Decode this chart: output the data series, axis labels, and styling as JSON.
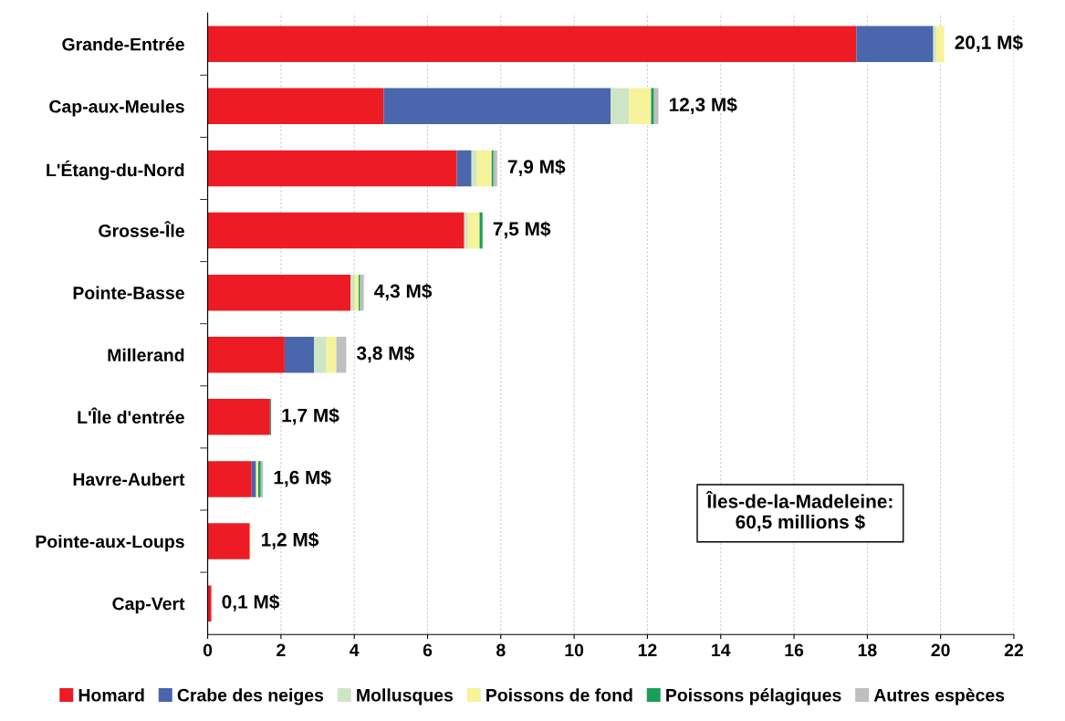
{
  "chart_data": {
    "type": "bar",
    "orientation": "horizontal",
    "stacked": true,
    "categories": [
      "Grande-Entrée",
      "Cap-aux-Meules",
      "L'Étang-du-Nord",
      "Grosse-Île",
      "Pointe-Basse",
      "Millerand",
      "L'Île d'entrée",
      "Havre-Aubert",
      "Pointe-aux-Loups",
      "Cap-Vert"
    ],
    "series": [
      {
        "name": "Homard",
        "color": "#ed1c24",
        "values": [
          17.7,
          4.8,
          6.8,
          7.0,
          3.9,
          2.1,
          1.7,
          1.2,
          1.15,
          0.1
        ]
      },
      {
        "name": "Crabe des neiges",
        "color": "#4a66ac",
        "values": [
          2.1,
          6.2,
          0.4,
          0,
          0,
          0.8,
          0,
          0.12,
          0,
          0
        ]
      },
      {
        "name": "Mollusques",
        "color": "#cfe6c6",
        "values": [
          0.08,
          0.5,
          0.15,
          0.1,
          0.12,
          0.34,
          0,
          null,
          0,
          0
        ]
      },
      {
        "name": "Poissons de fond",
        "color": "#f7f39a",
        "values": [
          0.22,
          0.6,
          0.4,
          0.32,
          0.1,
          0.27,
          0,
          0.06,
          0.02,
          0
        ]
      },
      {
        "name": "Poissons pélagiques",
        "color": "#1a9f5a",
        "values": [
          0,
          0.08,
          0.05,
          0.08,
          0.04,
          null,
          0.03,
          0.07,
          0,
          0
        ]
      },
      {
        "name": "Autres espèces",
        "color": "#bfbfbf",
        "values": [
          0,
          0.12,
          0.1,
          0,
          0.1,
          0.27,
          0,
          0.06,
          null,
          0
        ]
      }
    ],
    "totals": [
      "20,1 M$",
      "12,3 M$",
      "7,9 M$",
      "7,5 M$",
      "4,3 M$",
      "3,8 M$",
      "1,7 M$",
      "1,6 M$",
      "1,2 M$",
      "0,1 M$"
    ],
    "xlim": [
      0,
      22
    ],
    "xticks": [
      0,
      2,
      4,
      6,
      8,
      10,
      12,
      14,
      16,
      18,
      20,
      22
    ],
    "grid": "x",
    "legend": "bottom",
    "annotations": [
      "Îles-de-la-Madeleine:\n60,5 millions $"
    ]
  }
}
